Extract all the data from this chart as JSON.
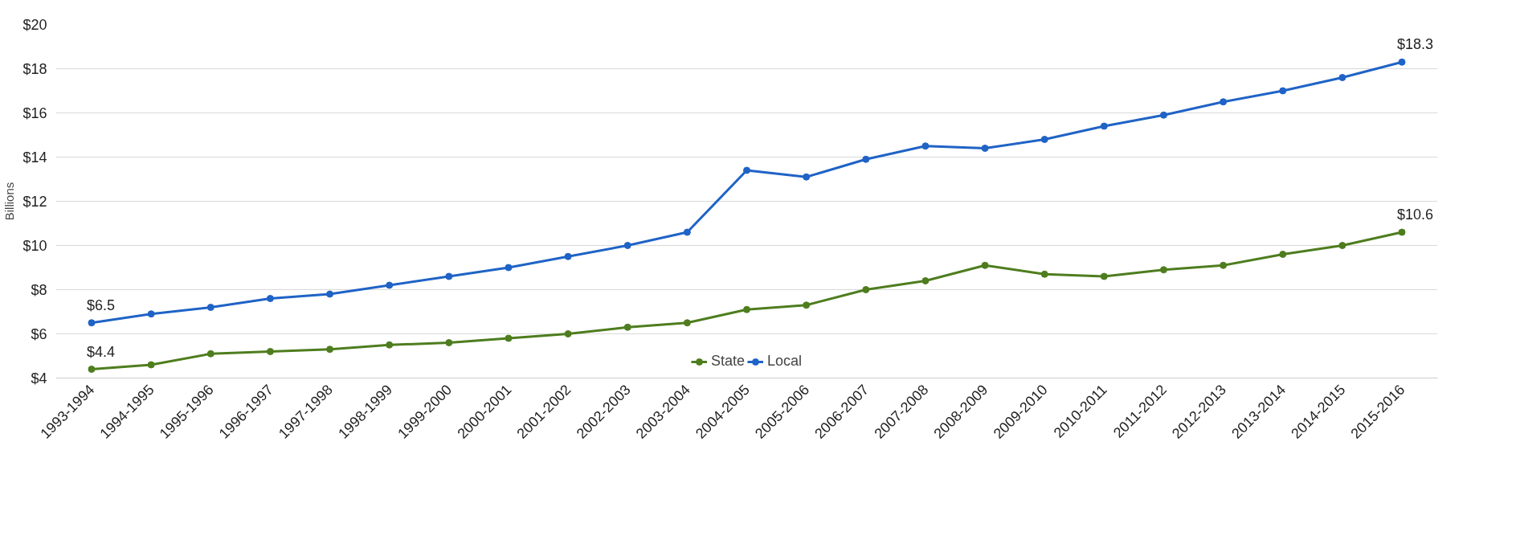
{
  "chart_data": {
    "type": "line",
    "ylabel": "Billions",
    "categories": [
      "1993-1994",
      "1994-1995",
      "1995-1996",
      "1996-1997",
      "1997-1998",
      "1998-1999",
      "1999-2000",
      "2000-2001",
      "2001-2002",
      "2002-2003",
      "2003-2004",
      "2004-2005",
      "2005-2006",
      "2006-2007",
      "2007-2008",
      "2008-2009",
      "2009-2010",
      "2010-2011",
      "2011-2012",
      "2012-2013",
      "2013-2014",
      "2014-2015",
      "2015-2016"
    ],
    "series": [
      {
        "name": "State",
        "color": "#4e7d1e",
        "values": [
          4.4,
          4.6,
          5.1,
          5.2,
          5.3,
          5.5,
          5.6,
          5.8,
          6.0,
          6.3,
          6.5,
          7.1,
          7.3,
          8.0,
          8.4,
          9.1,
          8.7,
          8.6,
          8.9,
          9.1,
          9.6,
          10.0,
          10.6
        ],
        "value_labels": [
          "$4.4",
          null,
          null,
          null,
          null,
          null,
          null,
          null,
          null,
          null,
          null,
          null,
          null,
          null,
          null,
          null,
          null,
          null,
          null,
          null,
          null,
          null,
          "$10.6"
        ]
      },
      {
        "name": "Local",
        "color": "#1f63c6",
        "values": [
          6.5,
          6.9,
          7.2,
          7.6,
          7.8,
          8.2,
          8.6,
          9.0,
          9.5,
          10.0,
          10.6,
          13.4,
          13.1,
          13.9,
          14.5,
          14.4,
          14.8,
          15.4,
          15.9,
          16.5,
          17.0,
          17.6,
          18.3
        ],
        "value_labels": [
          "$6.5",
          null,
          null,
          null,
          null,
          null,
          null,
          null,
          null,
          null,
          null,
          null,
          null,
          null,
          null,
          null,
          null,
          null,
          null,
          null,
          null,
          null,
          "$18.3"
        ]
      }
    ],
    "ylim": [
      4,
      20
    ],
    "yticks": [
      {
        "value": 4,
        "label": "$4"
      },
      {
        "value": 6,
        "label": "$6"
      },
      {
        "value": 8,
        "label": "$8"
      },
      {
        "value": 10,
        "label": "$10"
      },
      {
        "value": 12,
        "label": "$12"
      },
      {
        "value": 14,
        "label": "$14"
      },
      {
        "value": 16,
        "label": "$16"
      },
      {
        "value": 18,
        "label": "$18"
      },
      {
        "value": 20,
        "label": "$20"
      }
    ],
    "grid": "y",
    "legend": "bottom",
    "marker": "circle",
    "line_style": "solid"
  }
}
